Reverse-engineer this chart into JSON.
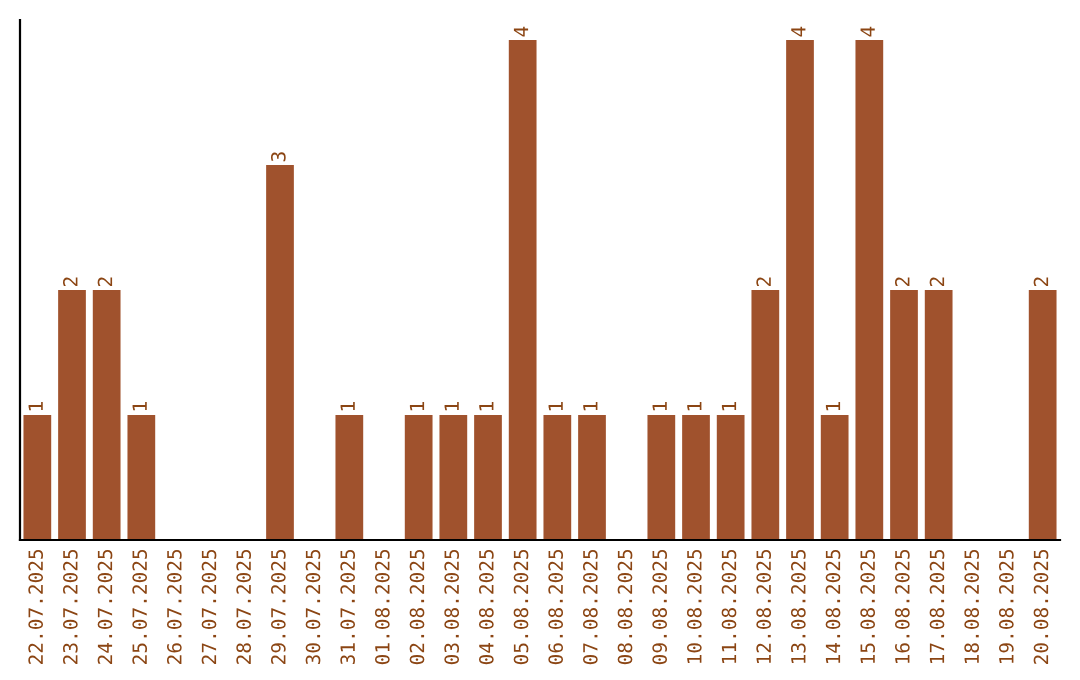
{
  "chart_data": {
    "type": "bar",
    "categories": [
      "22.07.2025",
      "23.07.2025",
      "24.07.2025",
      "25.07.2025",
      "26.07.2025",
      "27.07.2025",
      "28.07.2025",
      "29.07.2025",
      "30.07.2025",
      "31.07.2025",
      "01.08.2025",
      "02.08.2025",
      "03.08.2025",
      "04.08.2025",
      "05.08.2025",
      "06.08.2025",
      "07.08.2025",
      "08.08.2025",
      "09.08.2025",
      "10.08.2025",
      "11.08.2025",
      "12.08.2025",
      "13.08.2025",
      "14.08.2025",
      "15.08.2025",
      "16.08.2025",
      "17.08.2025",
      "18.08.2025",
      "19.08.2025",
      "20.08.2025"
    ],
    "values": [
      1,
      2,
      2,
      1,
      0,
      0,
      0,
      3,
      0,
      1,
      0,
      1,
      1,
      1,
      4,
      1,
      1,
      0,
      1,
      1,
      1,
      2,
      4,
      1,
      4,
      2,
      2,
      0,
      0,
      2
    ],
    "value_labels": [
      "1",
      "2",
      "2",
      "1",
      null,
      null,
      null,
      "3",
      null,
      "1",
      null,
      "1",
      "1",
      "1",
      "4",
      "1",
      "1",
      null,
      "1",
      "1",
      "1",
      "2",
      "4",
      "1",
      "4",
      "2",
      "2",
      null,
      null,
      "2"
    ],
    "color": "#a0522d",
    "ylim": [
      0,
      4.16
    ],
    "tick_labels": "x",
    "grid": false,
    "legend": false
  }
}
